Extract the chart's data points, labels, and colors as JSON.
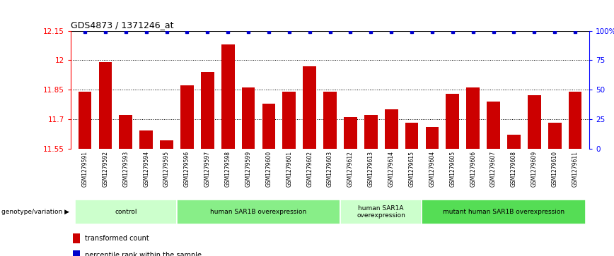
{
  "title": "GDS4873 / 1371246_at",
  "samples": [
    "GSM1279591",
    "GSM1279592",
    "GSM1279593",
    "GSM1279594",
    "GSM1279595",
    "GSM1279596",
    "GSM1279597",
    "GSM1279598",
    "GSM1279599",
    "GSM1279600",
    "GSM1279601",
    "GSM1279602",
    "GSM1279603",
    "GSM1279612",
    "GSM1279613",
    "GSM1279614",
    "GSM1279615",
    "GSM1279604",
    "GSM1279605",
    "GSM1279606",
    "GSM1279607",
    "GSM1279608",
    "GSM1279609",
    "GSM1279610",
    "GSM1279611"
  ],
  "values": [
    11.84,
    11.99,
    11.72,
    11.64,
    11.59,
    11.87,
    11.94,
    12.08,
    11.86,
    11.78,
    11.84,
    11.97,
    11.84,
    11.71,
    11.72,
    11.75,
    11.68,
    11.66,
    11.83,
    11.86,
    11.79,
    11.62,
    11.82,
    11.68,
    11.84
  ],
  "bar_color": "#cc0000",
  "dot_color": "#0000cc",
  "ymin": 11.55,
  "ymax": 12.15,
  "yticks": [
    11.55,
    11.7,
    11.85,
    12.0,
    12.15
  ],
  "ytick_labels": [
    "11.55",
    "11.7",
    "11.85",
    "12",
    "12.15"
  ],
  "right_yticks": [
    0,
    25,
    50,
    75,
    100
  ],
  "right_ytick_labels": [
    "0",
    "25",
    "50",
    "75",
    "100%"
  ],
  "grid_lines": [
    11.7,
    11.85,
    12.0
  ],
  "groups": [
    {
      "label": "control",
      "start": 0,
      "end": 5,
      "color": "#ccffcc"
    },
    {
      "label": "human SAR1B overexpression",
      "start": 5,
      "end": 13,
      "color": "#88ee88"
    },
    {
      "label": "human SAR1A\noverexpression",
      "start": 13,
      "end": 17,
      "color": "#ccffcc"
    },
    {
      "label": "mutant human SAR1B overexpression",
      "start": 17,
      "end": 25,
      "color": "#55dd55"
    }
  ],
  "legend_red": "transformed count",
  "legend_blue": "percentile rank within the sample",
  "background_color": "#ffffff",
  "tick_area_bg": "#c8c8c8",
  "group_area_bg": "#aaddaa"
}
